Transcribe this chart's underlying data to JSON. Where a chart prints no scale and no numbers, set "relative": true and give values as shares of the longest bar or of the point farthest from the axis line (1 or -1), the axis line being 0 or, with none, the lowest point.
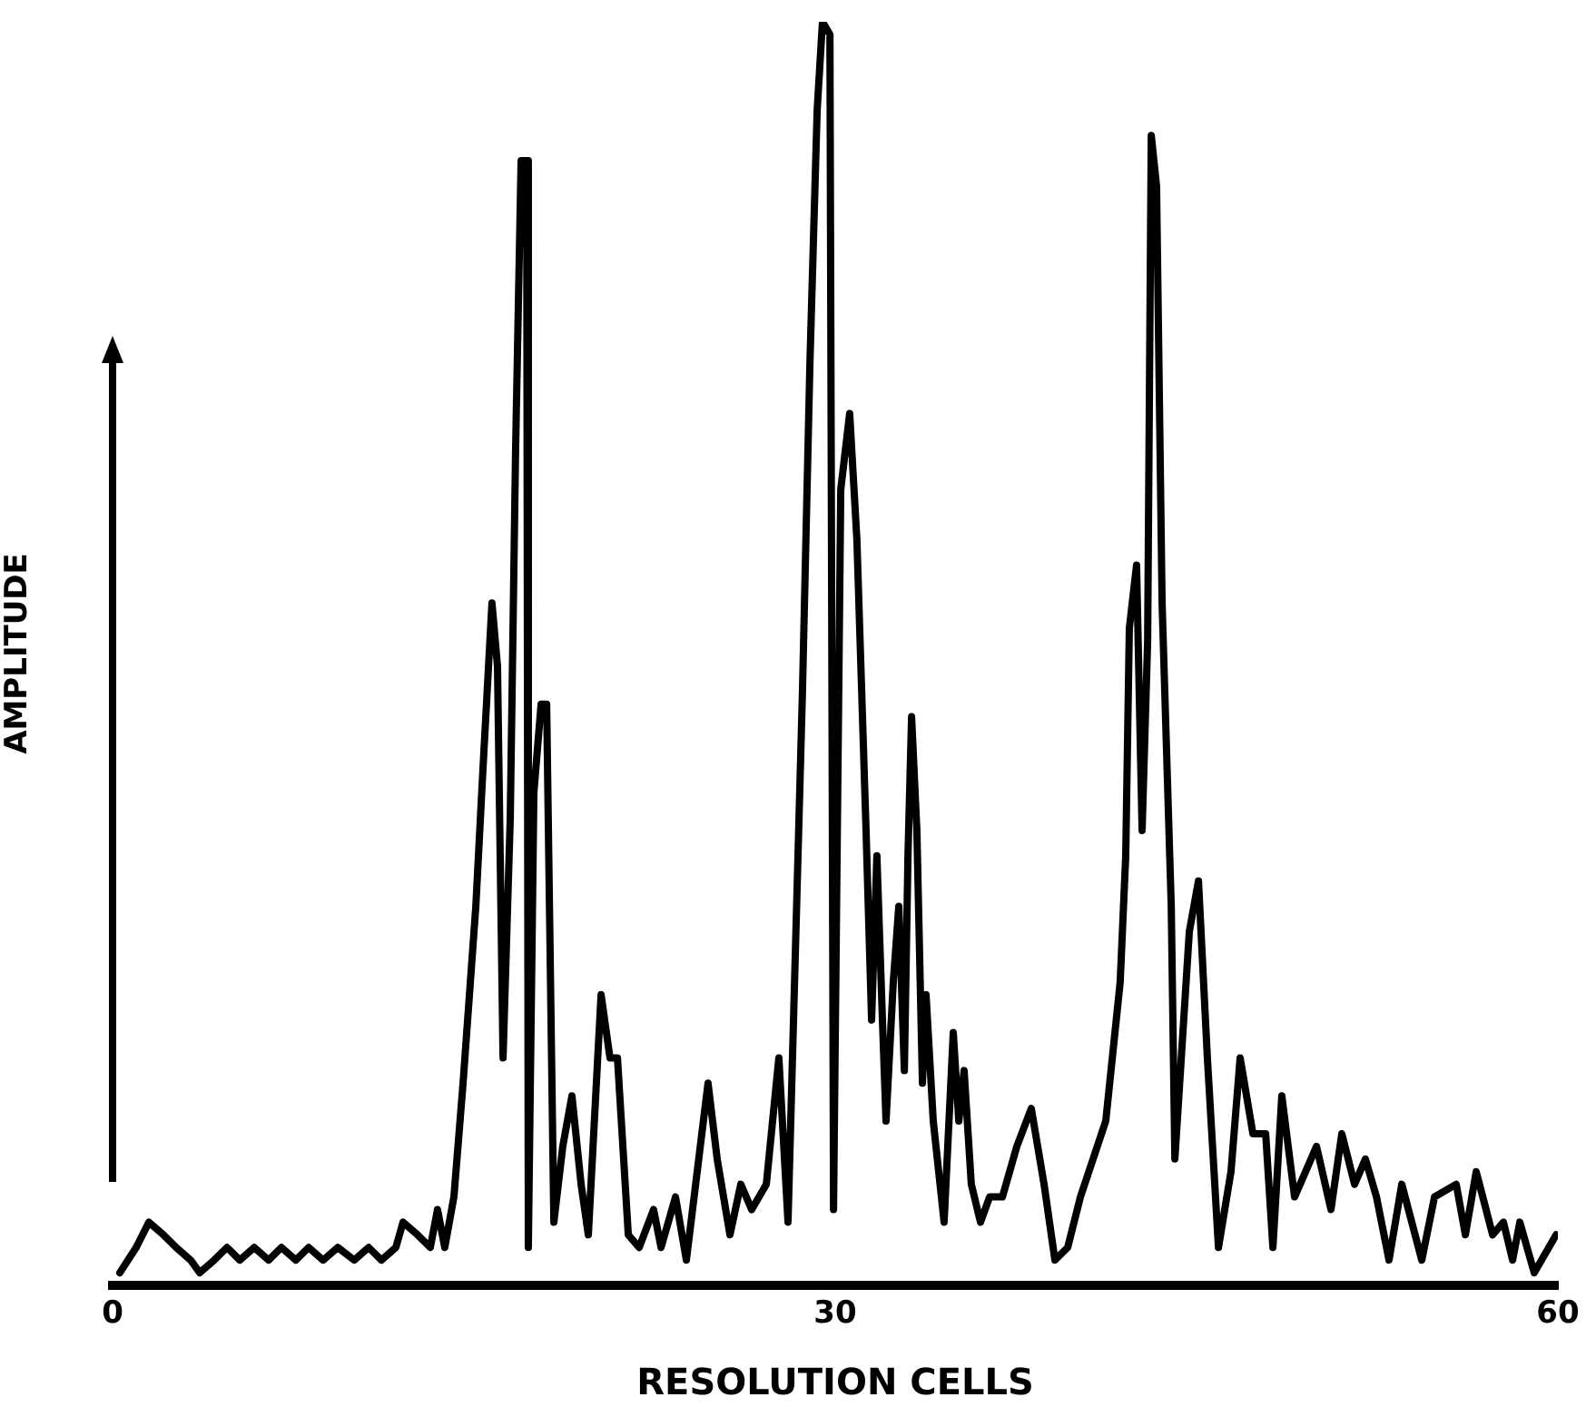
{
  "chart_data": {
    "type": "line",
    "xlabel": "RESOLUTION CELLS",
    "ylabel": "AMPLITUDE",
    "relative": true,
    "color": "#000000",
    "marker": "none",
    "grid": false,
    "legend": false,
    "xlim": [
      0,
      60
    ],
    "xticks": [
      0,
      30,
      60
    ],
    "x": [
      0.3,
      0.98,
      1.51,
      2.11,
      2.64,
      3.24,
      3.62,
      4.22,
      4.75,
      5.28,
      5.88,
      6.48,
      7.01,
      7.61,
      8.14,
      8.74,
      9.35,
      10.03,
      10.63,
      11.16,
      11.76,
      12.06,
      12.66,
      13.19,
      13.49,
      13.79,
      14.17,
      14.55,
      15.08,
      15.38,
      15.75,
      15.98,
      16.21,
      16.51,
      16.73,
      16.96,
      17.19,
      17.26,
      17.49,
      17.79,
      18.02,
      18.32,
      18.69,
      19.07,
      19.45,
      19.75,
      20.28,
      20.65,
      20.96,
      21.41,
      21.86,
      22.46,
      22.77,
      23.37,
      23.82,
      24.72,
      25.1,
      25.63,
      26.08,
      26.53,
      27.14,
      27.66,
      28.04,
      28.64,
      28.95,
      29.25,
      29.47,
      29.78,
      29.93,
      30.23,
      30.6,
      30.9,
      31.28,
      31.51,
      31.73,
      31.96,
      32.11,
      32.41,
      32.64,
      32.87,
      33.02,
      33.17,
      33.39,
      33.62,
      33.77,
      34.07,
      34.52,
      34.9,
      35.13,
      35.35,
      35.65,
      36.03,
      36.41,
      36.94,
      37.54,
      38.14,
      38.67,
      39.12,
      39.65,
      40.18,
      41.23,
      41.83,
      42.06,
      42.21,
      42.51,
      42.74,
      42.97,
      43.12,
      43.34,
      43.57,
      43.95,
      44.1,
      44.7,
      45.08,
      45.45,
      45.91,
      46.43,
      46.81,
      47.34,
      47.87,
      48.17,
      48.54,
      49.07,
      49.98,
      50.58,
      51.03,
      51.56,
      52.01,
      52.47,
      52.99,
      53.52,
      54.35,
      54.88,
      55.78,
      56.16,
      56.61,
      57.29,
      57.74,
      58.12,
      58.42,
      59.02,
      59.93
    ],
    "values": [
      0.01,
      0.03,
      0.05,
      0.04,
      0.03,
      0.02,
      0.01,
      0.02,
      0.03,
      0.02,
      0.03,
      0.02,
      0.03,
      0.02,
      0.03,
      0.02,
      0.03,
      0.02,
      0.03,
      0.02,
      0.03,
      0.05,
      0.04,
      0.03,
      0.06,
      0.03,
      0.07,
      0.16,
      0.3,
      0.41,
      0.54,
      0.49,
      0.18,
      0.37,
      0.66,
      0.89,
      0.89,
      0.03,
      0.39,
      0.46,
      0.46,
      0.05,
      0.11,
      0.15,
      0.08,
      0.04,
      0.23,
      0.18,
      0.18,
      0.04,
      0.03,
      0.06,
      0.03,
      0.07,
      0.02,
      0.16,
      0.1,
      0.04,
      0.08,
      0.06,
      0.08,
      0.18,
      0.05,
      0.47,
      0.73,
      0.93,
      1.0,
      0.99,
      0.06,
      0.63,
      0.69,
      0.59,
      0.36,
      0.21,
      0.34,
      0.21,
      0.13,
      0.24,
      0.3,
      0.17,
      0.34,
      0.45,
      0.36,
      0.16,
      0.23,
      0.13,
      0.05,
      0.2,
      0.13,
      0.17,
      0.08,
      0.05,
      0.07,
      0.07,
      0.11,
      0.14,
      0.08,
      0.02,
      0.03,
      0.07,
      0.13,
      0.24,
      0.34,
      0.52,
      0.57,
      0.36,
      0.51,
      0.91,
      0.87,
      0.54,
      0.3,
      0.1,
      0.28,
      0.32,
      0.18,
      0.03,
      0.09,
      0.18,
      0.12,
      0.12,
      0.03,
      0.15,
      0.07,
      0.11,
      0.06,
      0.12,
      0.08,
      0.1,
      0.07,
      0.02,
      0.08,
      0.02,
      0.07,
      0.08,
      0.04,
      0.09,
      0.04,
      0.05,
      0.02,
      0.05,
      0.01,
      0.04
    ]
  }
}
